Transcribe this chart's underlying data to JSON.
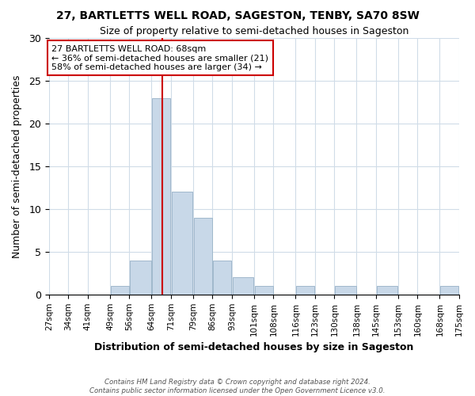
{
  "title": "27, BARTLETTS WELL ROAD, SAGESTON, TENBY, SA70 8SW",
  "subtitle": "Size of property relative to semi-detached houses in Sageston",
  "xlabel": "Distribution of semi-detached houses by size in Sageston",
  "ylabel": "Number of semi-detached properties",
  "bin_edges": [
    27,
    34,
    41,
    49,
    56,
    64,
    71,
    79,
    86,
    93,
    101,
    108,
    116,
    123,
    130,
    138,
    145,
    153,
    160,
    168,
    175
  ],
  "bar_heights": [
    0,
    0,
    0,
    1,
    4,
    23,
    12,
    9,
    4,
    2,
    1,
    0,
    1,
    0,
    1,
    0,
    1,
    0,
    0,
    1
  ],
  "bar_color": "#c8d8e8",
  "bar_edge_color": "#a0b8cc",
  "property_line_x": 68,
  "property_line_color": "#cc0000",
  "ylim": [
    0,
    30
  ],
  "annotation_title": "27 BARTLETTS WELL ROAD: 68sqm",
  "annotation_line1": "← 36% of semi-detached houses are smaller (21)",
  "annotation_line2": "58% of semi-detached houses are larger (34) →",
  "annotation_box_color": "#ffffff",
  "annotation_box_edge": "#cc0000",
  "tick_labels": [
    "27sqm",
    "34sqm",
    "41sqm",
    "49sqm",
    "56sqm",
    "64sqm",
    "71sqm",
    "79sqm",
    "86sqm",
    "93sqm",
    "101sqm",
    "108sqm",
    "116sqm",
    "123sqm",
    "130sqm",
    "138sqm",
    "145sqm",
    "153sqm",
    "160sqm",
    "168sqm",
    "175sqm"
  ],
  "footer_line1": "Contains HM Land Registry data © Crown copyright and database right 2024.",
  "footer_line2": "Contains public sector information licensed under the Open Government Licence v3.0.",
  "grid_color": "#d0dce8",
  "background_color": "#ffffff"
}
